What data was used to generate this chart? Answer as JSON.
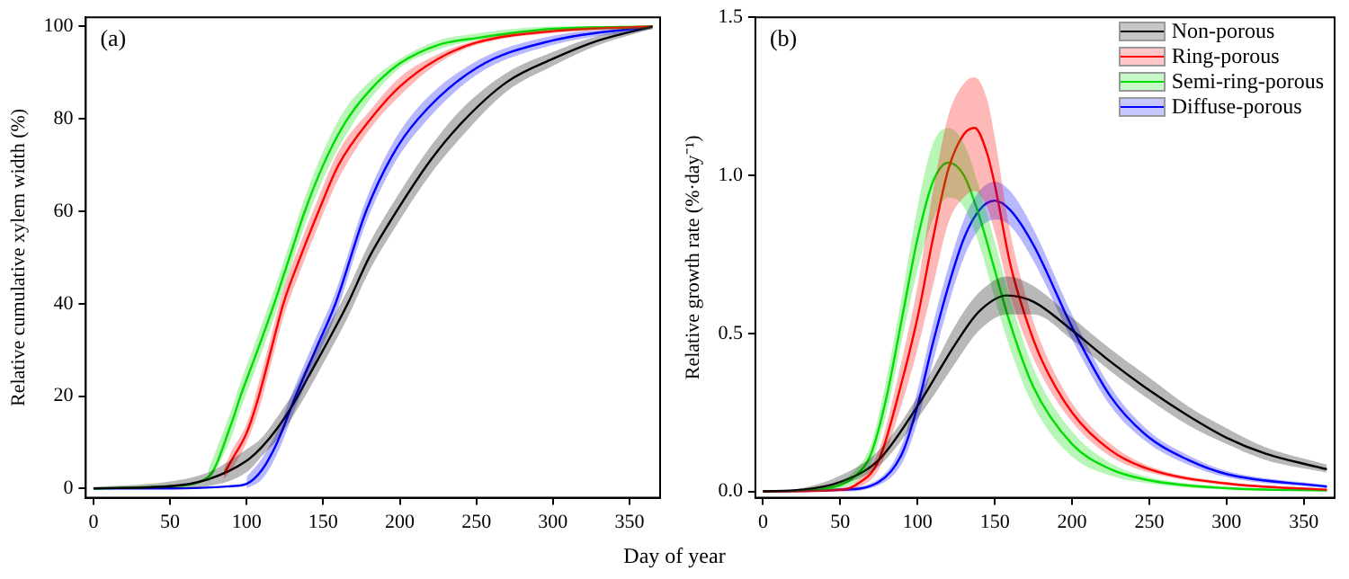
{
  "chart_data": [
    {
      "type": "line",
      "title": "(a)",
      "xlabel": "Day of year",
      "ylabel": "Relative cumulative xylem width (%)",
      "xlim": [
        -5,
        370
      ],
      "xticks": [
        0,
        50,
        100,
        150,
        200,
        250,
        300,
        350
      ],
      "ylim": [
        -2,
        102
      ],
      "yticks": [
        0,
        20,
        40,
        60,
        80,
        100
      ],
      "series": [
        {
          "color": "#000000",
          "x": [
            0,
            50,
            75,
            100,
            110,
            120,
            130,
            140,
            150,
            166,
            180,
            196,
            220,
            240,
            270,
            300,
            330,
            365
          ],
          "values": [
            0,
            0.5,
            2,
            6,
            9,
            13,
            18,
            24,
            30,
            40,
            50,
            59,
            71,
            79,
            88,
            93,
            97,
            100
          ],
          "lower": [
            0,
            0,
            0.5,
            3.5,
            7,
            10.5,
            15.5,
            21,
            27,
            37,
            47,
            56,
            68,
            76,
            86,
            91.5,
            96,
            99.5
          ],
          "upper": [
            0.3,
            1.5,
            3.5,
            8.5,
            11,
            15.5,
            20.5,
            27,
            33,
            43,
            53,
            62,
            74,
            82,
            90,
            94.5,
            98,
            100
          ]
        },
        {
          "color": "#ff0000",
          "x": [
            85,
            90,
            100,
            108,
            116,
            124,
            135,
            147,
            160,
            181,
            200,
            225,
            250,
            300,
            365
          ],
          "values": [
            3,
            6,
            12,
            20,
            30,
            40,
            50,
            60,
            70,
            80,
            87,
            93,
            96.5,
            99,
            100
          ],
          "lower": [
            2,
            4,
            10,
            17,
            27,
            37,
            47,
            57,
            67,
            78,
            85,
            92,
            96,
            98.6,
            99.6
          ],
          "upper": [
            4,
            8,
            14,
            23,
            33,
            43,
            53,
            63,
            73,
            82,
            89,
            94,
            97,
            99.4,
            100
          ]
        },
        {
          "color": "#00dd00",
          "x": [
            0,
            50,
            75,
            90,
            96,
            105,
            118,
            128,
            138,
            150,
            164,
            180,
            200,
            225,
            250,
            300,
            365
          ],
          "values": [
            0,
            0.5,
            2.5,
            14,
            20,
            28,
            40,
            50,
            60,
            70,
            79,
            86,
            92,
            96,
            97.5,
            99.5,
            100
          ],
          "lower": [
            null,
            null,
            1,
            11,
            17,
            25,
            37,
            47,
            57,
            67,
            76,
            84,
            91,
            95,
            97,
            99,
            99.4
          ],
          "upper": [
            null,
            null,
            4,
            17,
            23,
            31,
            43,
            53,
            63,
            73,
            82,
            88,
            93,
            97,
            98.5,
            100,
            100
          ]
        },
        {
          "color": "#0000ff",
          "x": [
            0,
            50,
            90,
            100,
            110,
            120,
            132,
            145,
            158,
            178,
            195,
            212,
            250,
            300,
            365
          ],
          "values": [
            0,
            0,
            0.5,
            1,
            4,
            10,
            20,
            30,
            40,
            60,
            72,
            80,
            91,
            97,
            100
          ],
          "lower": [
            null,
            null,
            null,
            0,
            2,
            7.5,
            17.5,
            27.5,
            37.5,
            57.5,
            69.5,
            77.5,
            89.5,
            96,
            99.4
          ],
          "upper": [
            null,
            null,
            null,
            2.5,
            6.5,
            12.5,
            22.5,
            32.5,
            42.5,
            62.5,
            74.5,
            82.5,
            92.5,
            98,
            100
          ]
        }
      ]
    },
    {
      "type": "line",
      "title": "(b)",
      "ylabel": "Relative growth rate (%·day⁻¹)",
      "xlim": [
        -5,
        370
      ],
      "xticks": [
        0,
        50,
        100,
        150,
        200,
        250,
        300,
        350
      ],
      "ylim": [
        -0.02,
        1.5
      ],
      "yticks": [
        {
          "value": 0,
          "label": "0.0"
        },
        0.5,
        {
          "value": 1,
          "label": "1.0"
        },
        1.5
      ],
      "legend": "top right",
      "series": [
        {
          "name": "Non-porous",
          "color": "#000000",
          "x": [
            0,
            25,
            50,
            75,
            100,
            110,
            125,
            140,
            158,
            175,
            200,
            225,
            250,
            275,
            300,
            325,
            365
          ],
          "values": [
            0,
            0.005,
            0.03,
            0.1,
            0.27,
            0.35,
            0.47,
            0.57,
            0.62,
            0.6,
            0.51,
            0.41,
            0.32,
            0.24,
            0.17,
            0.12,
            0.07
          ],
          "lower": [
            0,
            0,
            0.02,
            0.08,
            0.23,
            0.3,
            0.41,
            0.51,
            0.56,
            0.56,
            0.48,
            0.38,
            0.29,
            0.21,
            0.15,
            0.1,
            0.06
          ],
          "upper": [
            0,
            0.01,
            0.05,
            0.13,
            0.3,
            0.39,
            0.53,
            0.63,
            0.68,
            0.65,
            0.55,
            0.45,
            0.36,
            0.27,
            0.2,
            0.14,
            0.085
          ]
        },
        {
          "name": "Ring-porous",
          "color": "#ff0000",
          "x": [
            0,
            50,
            60,
            75,
            90,
            100,
            110,
            120,
            130,
            137,
            145,
            150,
            160,
            170,
            180,
            200,
            225,
            250,
            300,
            365
          ],
          "values": [
            0,
            0.005,
            0.02,
            0.1,
            0.35,
            0.55,
            0.8,
            1.02,
            1.13,
            1.15,
            1.07,
            0.97,
            0.72,
            0.55,
            0.42,
            0.25,
            0.13,
            0.07,
            0.025,
            0.005
          ],
          "lower": [
            0,
            0,
            0.01,
            0.07,
            0.28,
            0.45,
            0.65,
            0.85,
            0.93,
            0.95,
            0.9,
            0.82,
            0.62,
            0.48,
            0.37,
            0.22,
            0.11,
            0.06,
            0.02,
            0.003
          ],
          "upper": [
            0,
            0.01,
            0.03,
            0.13,
            0.42,
            0.65,
            0.95,
            1.19,
            1.29,
            1.31,
            1.24,
            1.12,
            0.82,
            0.62,
            0.47,
            0.28,
            0.15,
            0.08,
            0.03,
            0.008
          ]
        },
        {
          "name": "Semi-ring-porous",
          "color": "#00dd00",
          "x": [
            0,
            25,
            50,
            60,
            70,
            80,
            90,
            100,
            110,
            120,
            130,
            140,
            150,
            160,
            175,
            200,
            225,
            250,
            300,
            365
          ],
          "values": [
            0,
            0.002,
            0.02,
            0.05,
            0.12,
            0.3,
            0.55,
            0.8,
            0.98,
            1.04,
            1.0,
            0.87,
            0.7,
            0.53,
            0.33,
            0.15,
            0.07,
            0.035,
            0.01,
            0.003
          ],
          "lower": [
            0,
            0,
            0.01,
            0.03,
            0.09,
            0.25,
            0.48,
            0.7,
            0.86,
            0.93,
            0.9,
            0.78,
            0.61,
            0.45,
            0.27,
            0.11,
            0.05,
            0.025,
            0.005,
            0.001
          ],
          "upper": [
            0,
            0.005,
            0.03,
            0.07,
            0.15,
            0.36,
            0.62,
            0.9,
            1.1,
            1.15,
            1.1,
            0.96,
            0.79,
            0.61,
            0.39,
            0.19,
            0.09,
            0.045,
            0.015,
            0.005
          ]
        },
        {
          "name": "Diffuse-porous",
          "color": "#0000ff",
          "x": [
            0,
            50,
            75,
            90,
            100,
            110,
            120,
            130,
            140,
            150,
            160,
            175,
            200,
            225,
            250,
            275,
            300,
            365
          ],
          "values": [
            0,
            0.005,
            0.03,
            0.12,
            0.27,
            0.47,
            0.65,
            0.8,
            0.89,
            0.92,
            0.89,
            0.78,
            0.52,
            0.3,
            0.17,
            0.1,
            0.055,
            0.015
          ],
          "lower": [
            0,
            0,
            0.02,
            0.09,
            0.22,
            0.41,
            0.59,
            0.74,
            0.83,
            0.86,
            0.84,
            0.73,
            0.48,
            0.27,
            0.15,
            0.085,
            0.045,
            0.01
          ],
          "upper": [
            0,
            0.01,
            0.04,
            0.15,
            0.32,
            0.53,
            0.71,
            0.86,
            0.95,
            0.98,
            0.95,
            0.83,
            0.56,
            0.33,
            0.19,
            0.115,
            0.065,
            0.02
          ]
        }
      ]
    }
  ]
}
